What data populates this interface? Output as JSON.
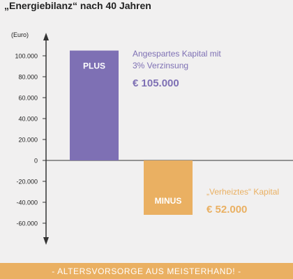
{
  "title": "„Energiebilanz“ nach 40 Jahren",
  "footer": "- ALTERSVORSORGE AUS MEISTERHAND! -",
  "colors": {
    "plus": "#7e70b4",
    "minus": "#eab062",
    "axis": "#333333",
    "background": "#f1f0f0"
  },
  "chart_data": {
    "type": "bar",
    "ylabel": "(Euro)",
    "ylim": [
      -70000,
      115000
    ],
    "yticks": [
      100000,
      80000,
      60000,
      40000,
      20000,
      0,
      -20000,
      -40000,
      -60000
    ],
    "ytick_labels": [
      "100.000",
      "80.000",
      "60.000",
      "40.000",
      "20.000",
      "0",
      "-20.000",
      "-40.000",
      "-60.000"
    ],
    "bars": [
      {
        "label": "PLUS",
        "value": 105000,
        "color": "#7e70b4",
        "annotation": [
          "Angespartes Kapital mit",
          "3% Verzinsung"
        ],
        "amount": "€ 105.000"
      },
      {
        "label": "MINUS",
        "value": -52000,
        "color": "#eab062",
        "annotation": [
          "„Verheiztes“ Kapital"
        ],
        "amount": "€ 52.000"
      }
    ]
  }
}
